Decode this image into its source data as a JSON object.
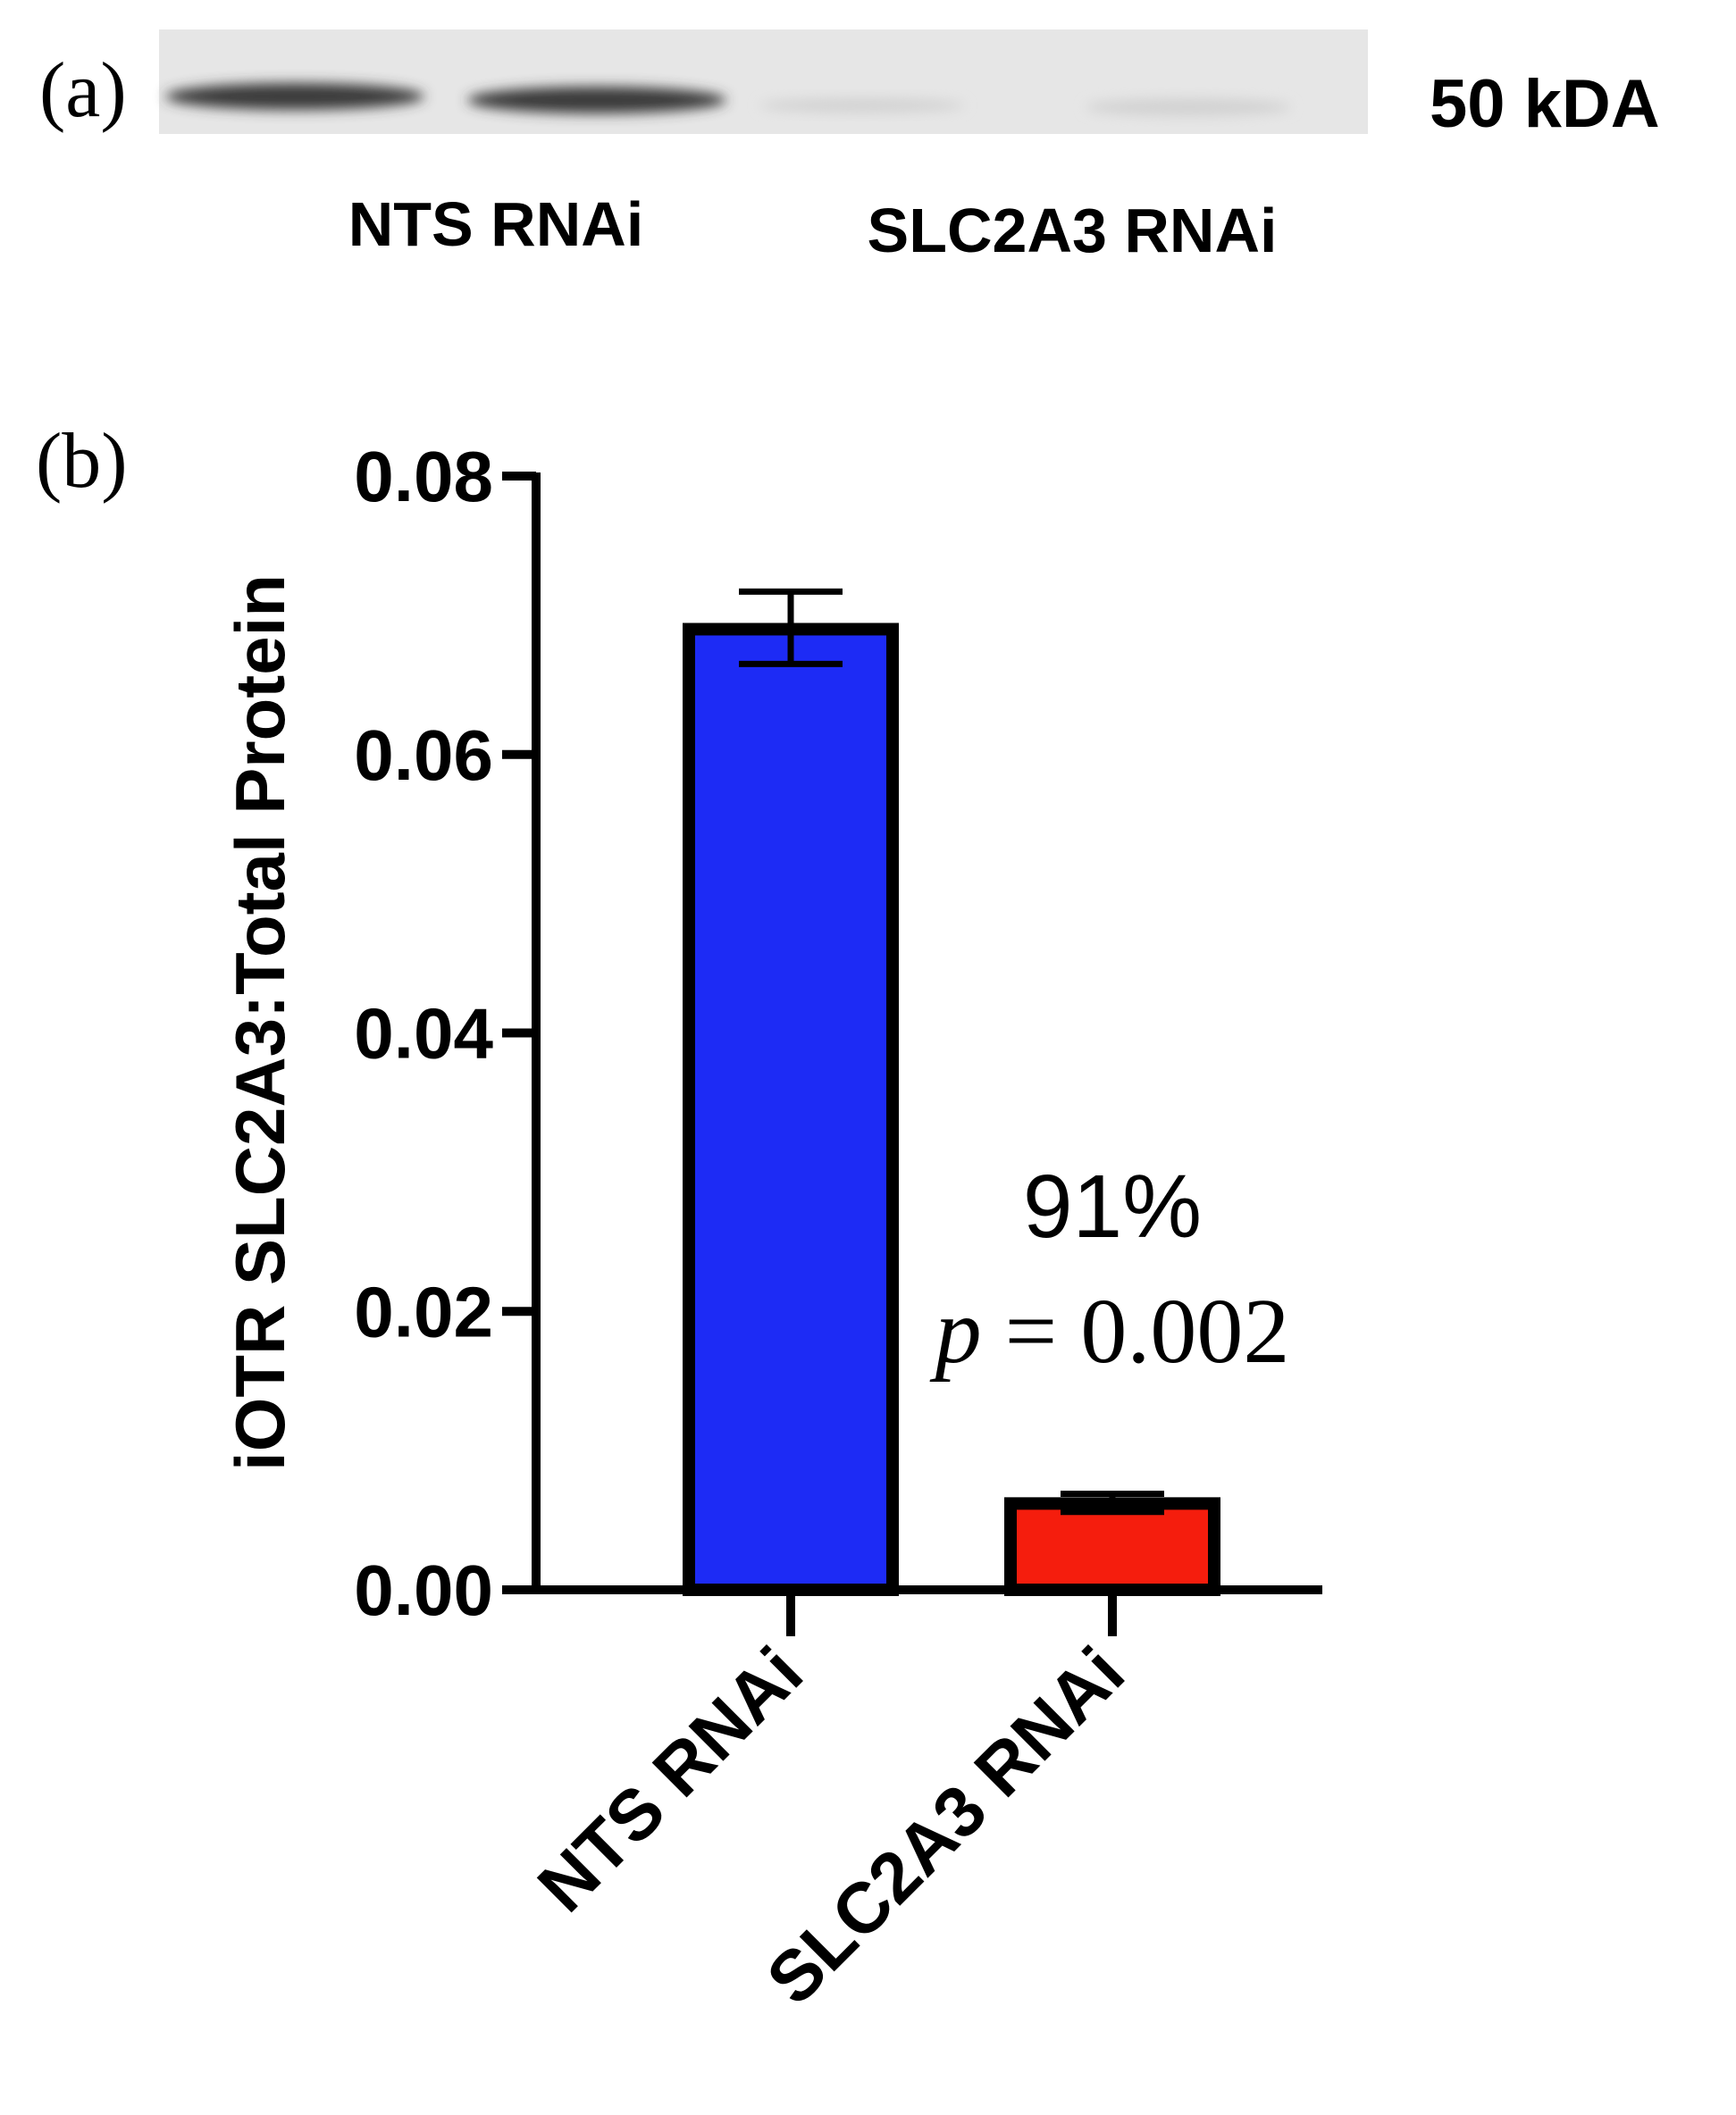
{
  "panel_a": {
    "label": "(a)",
    "marker_label": "50 kDA",
    "lane_group_labels": [
      "NTS RNAi",
      "SLC2A3 RNAi"
    ]
  },
  "panel_b": {
    "label": "(b)"
  },
  "colors": {
    "bar_nts": "#1d2bf5",
    "bar_slc2a3": "#f51d0d",
    "stroke": "#000000",
    "blot_background": "#e6e6e6",
    "band_dark": "#3a3a3a",
    "band_faint": "#d2d2d2"
  },
  "chart_data": {
    "type": "bar",
    "categories": [
      "NTS RNAi",
      "SLC2A3 RNAi"
    ],
    "values": [
      0.069,
      0.0062
    ],
    "error_upper": [
      0.0717,
      0.0069
    ],
    "error_lower": [
      0.0665,
      0.0056
    ],
    "ylabel": "iOTR SLC2A3:Total Protein",
    "xlabel": "",
    "ylim": [
      0,
      0.08
    ],
    "yticks": [
      "0.00",
      "0.02",
      "0.04",
      "0.06",
      "0.08"
    ],
    "grid": false,
    "annotations": {
      "percent": "91%",
      "p_symbol": "p",
      "p_rest": "= 0.002"
    }
  }
}
